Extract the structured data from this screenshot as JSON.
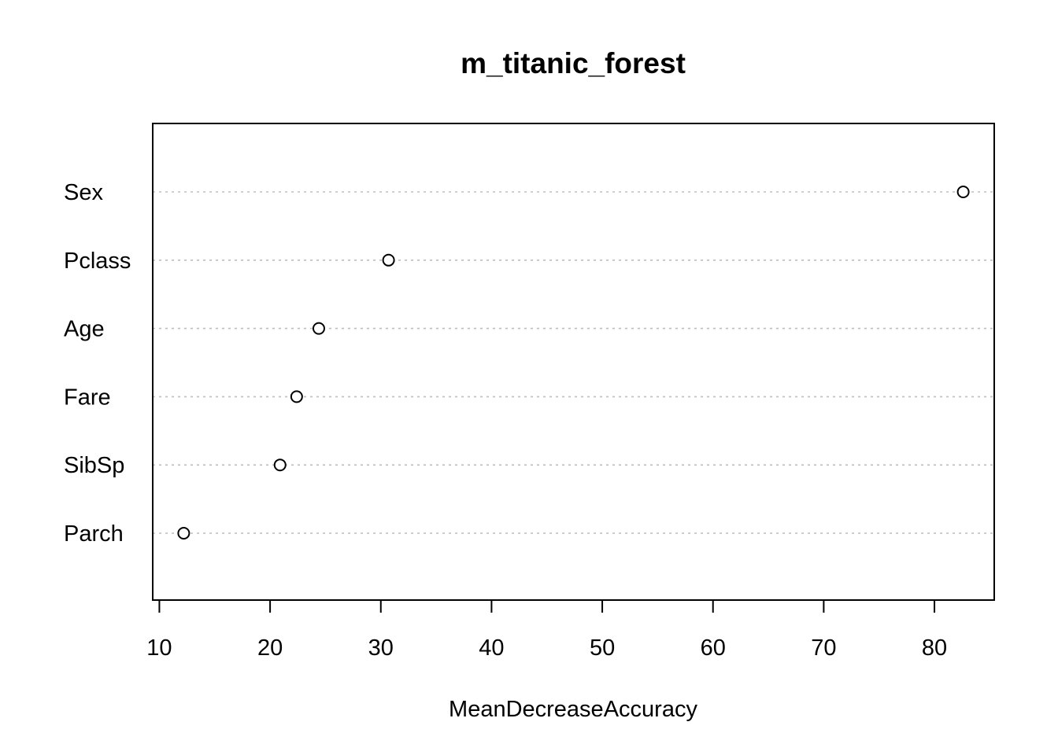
{
  "chart_data": {
    "type": "scatter",
    "subtype": "dotchart",
    "title": "m_titanic_forest",
    "xlabel": "MeanDecreaseAccuracy",
    "ylabel": "",
    "categories": [
      "Sex",
      "Pclass",
      "Age",
      "Fare",
      "SibSp",
      "Parch"
    ],
    "values": [
      82.6,
      30.7,
      24.4,
      22.4,
      20.9,
      12.2
    ],
    "xlim": [
      9.4,
      85.4
    ],
    "xticks": [
      10,
      20,
      30,
      40,
      50,
      60,
      70,
      80
    ],
    "grid": "dotted horizontal lines per category",
    "marker": "open circle",
    "colors": {
      "background": "#ffffff",
      "axis": "#000000",
      "gridline": "#bebebe",
      "marker_stroke": "#000000"
    }
  }
}
